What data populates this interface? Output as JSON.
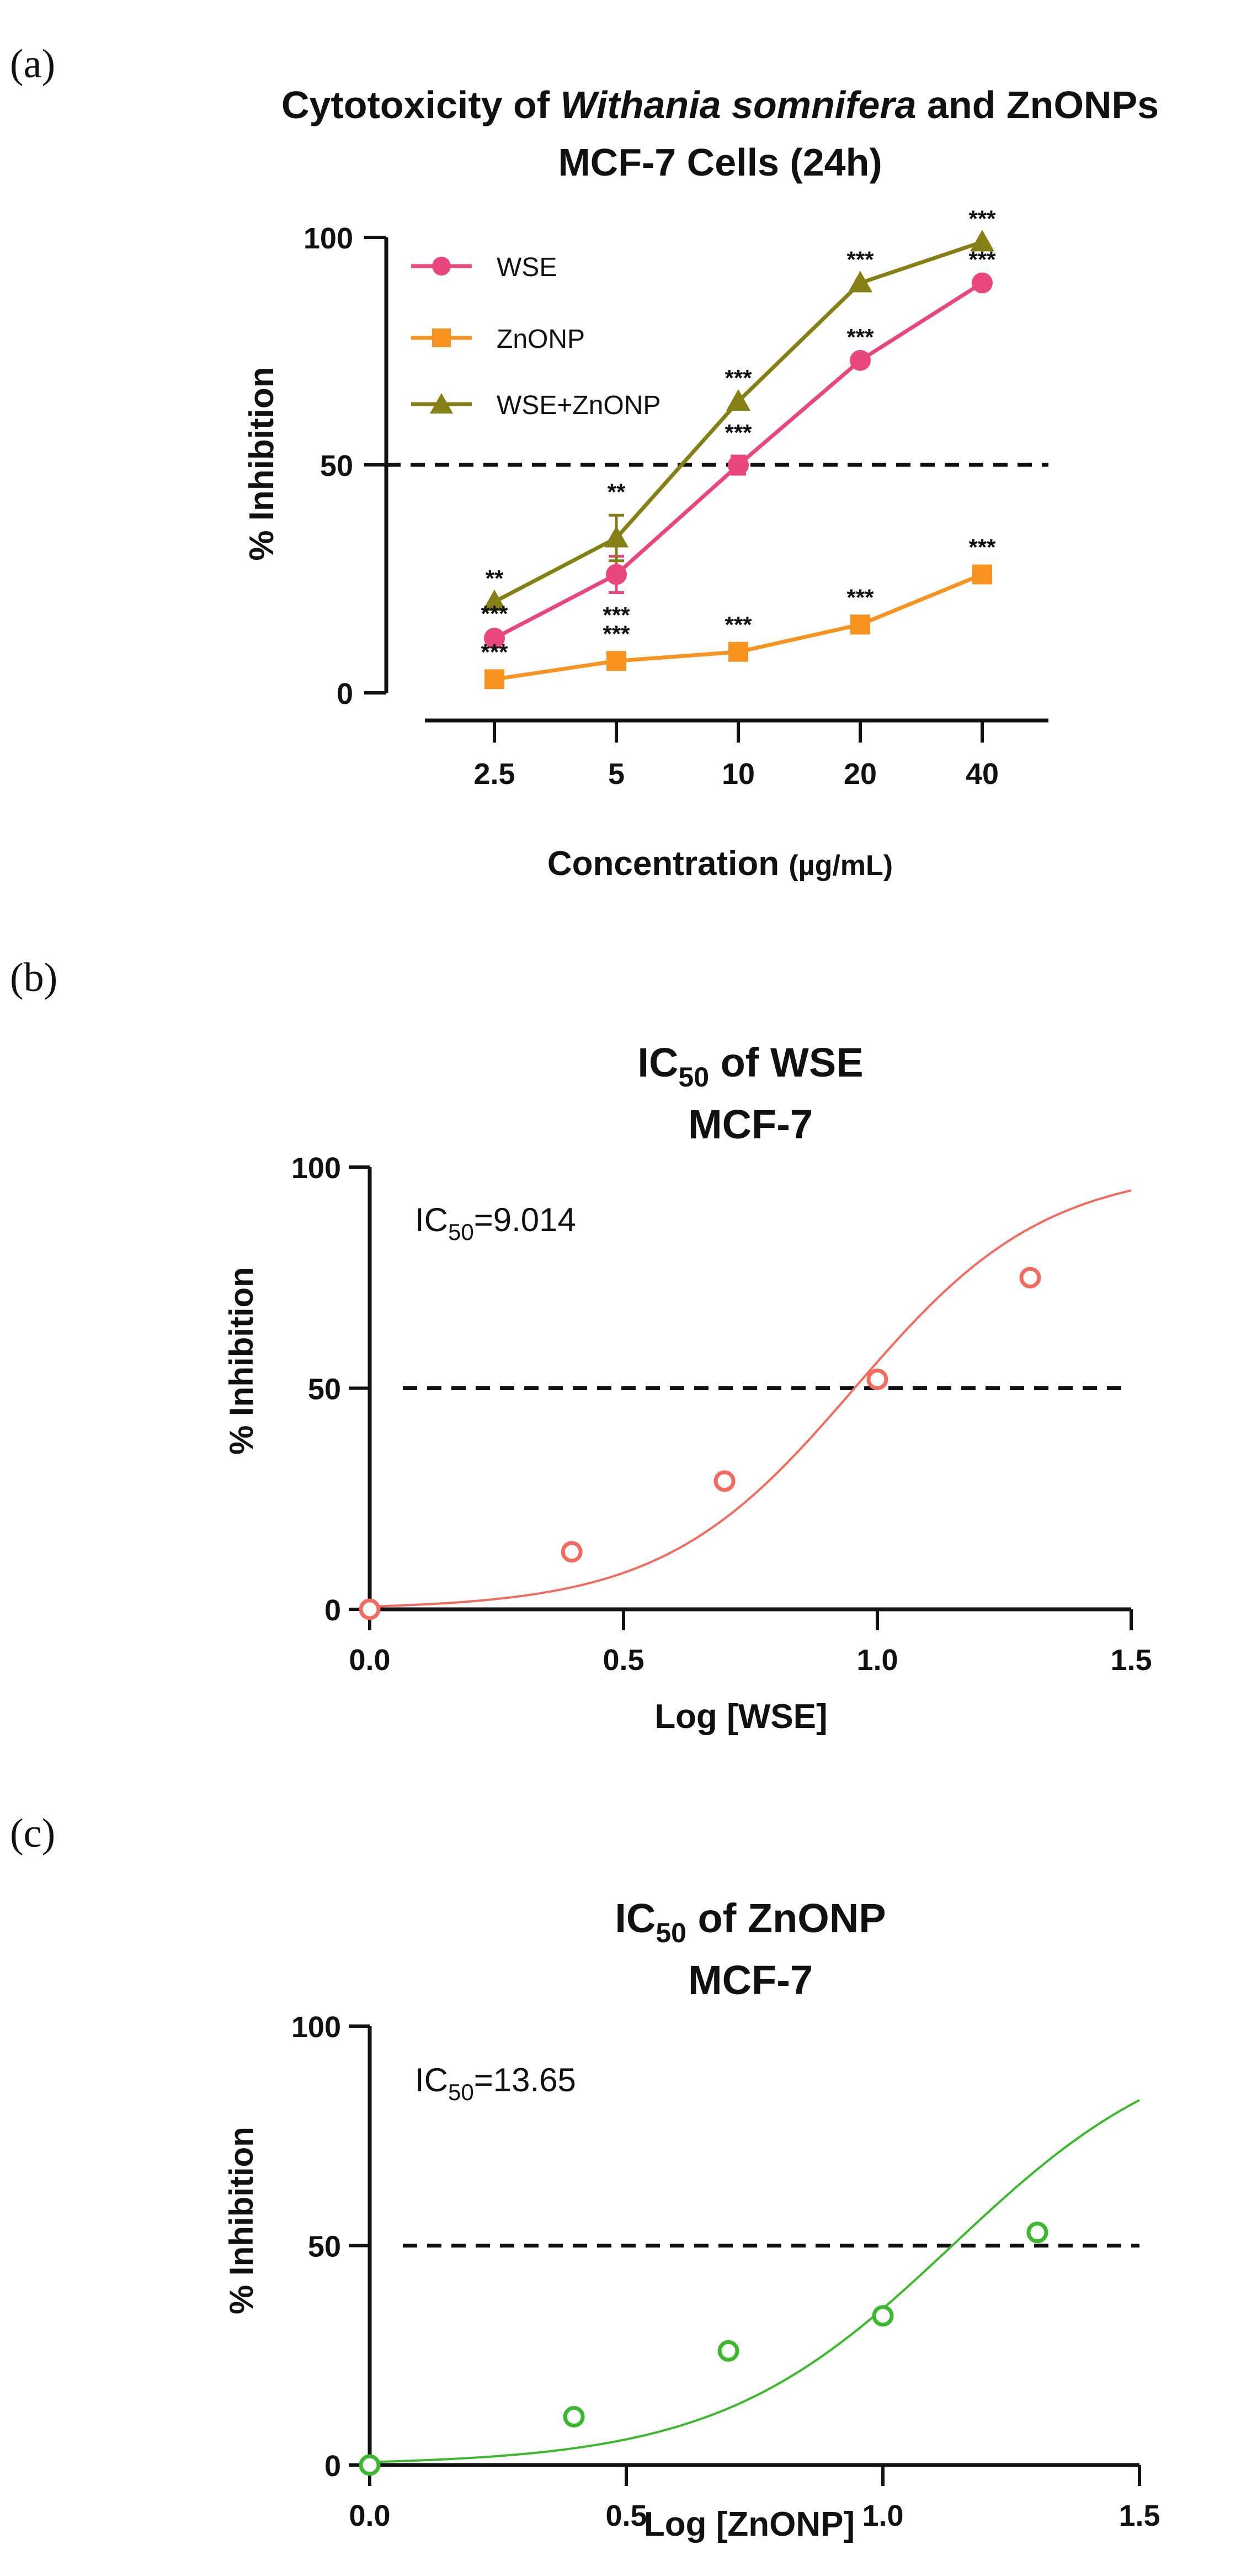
{
  "panels": {
    "a": "(a)",
    "b": "(b)",
    "c": "(c)"
  },
  "chart_data": [
    {
      "type": "line",
      "title_parts": [
        "Cytotoxicity of ",
        "Withania somnifera",
        " and ZnONPs"
      ],
      "subtitle": "MCF-7 Cells (24h)",
      "xlabel_main": "Concentration ",
      "xlabel_unit": "(µg/mL)",
      "ylabel": "% Inhibition",
      "categories": [
        "2.5",
        "5",
        "10",
        "20",
        "40"
      ],
      "yticks": [
        "0",
        "50",
        "100"
      ],
      "ylim": [
        0,
        100
      ],
      "reference_line": 50,
      "legend_position": "top-left",
      "series": [
        {
          "name": "WSE",
          "color": "#e9467e",
          "marker": "circle",
          "values": [
            12,
            26,
            50,
            73,
            90
          ],
          "errors": [
            0,
            4,
            2,
            0,
            0
          ],
          "significance": [
            "***",
            "***",
            "***",
            "***",
            "***"
          ]
        },
        {
          "name": "ZnONP",
          "color": "#f7931e",
          "marker": "square",
          "values": [
            3,
            7,
            9,
            15,
            26
          ],
          "errors": [
            0,
            0,
            0,
            0,
            0
          ],
          "significance": [
            "***",
            "***",
            "***",
            "***",
            "***"
          ]
        },
        {
          "name": "WSE+ZnONP",
          "color": "#858015",
          "marker": "triangle",
          "values": [
            20,
            34,
            64,
            90,
            99
          ],
          "errors": [
            0,
            5,
            0,
            0,
            0
          ],
          "significance": [
            "**",
            "**",
            "***",
            "***",
            "***"
          ]
        }
      ]
    },
    {
      "type": "scatter",
      "title_main": "IC",
      "title_sub": "50",
      "title_rest": " of WSE",
      "subtitle": "MCF-7",
      "xlabel": "Log [WSE]",
      "ylabel": "% Inhibition",
      "xticks": [
        "0.0",
        "0.5",
        "1.0",
        "1.5"
      ],
      "yticks": [
        "0",
        "50",
        "100"
      ],
      "xlim": [
        0,
        1.5
      ],
      "ylim": [
        0,
        100
      ],
      "reference_line": 50,
      "annotation_main": "IC",
      "annotation_sub": "50",
      "annotation_rest": "=9.014",
      "color": "#f26b5e",
      "points": {
        "x": [
          0.0,
          0.398,
          0.699,
          1.0,
          1.301
        ],
        "y": [
          0,
          13,
          29,
          52,
          75
        ]
      },
      "curve": {
        "ic50": 9.014,
        "hill": 2.3,
        "min": 0,
        "max": 100
      }
    },
    {
      "type": "scatter",
      "title_main": "IC",
      "title_sub": "50",
      "title_rest": " of ZnONP",
      "subtitle": "MCF-7",
      "xlabel": "Log [ZnONP]",
      "ylabel": "% Inhibition",
      "xticks": [
        "0.0",
        "0.5",
        "1.0",
        "1.5"
      ],
      "yticks": [
        "0",
        "50",
        "100"
      ],
      "xlim": [
        0,
        1.5
      ],
      "ylim": [
        0,
        100
      ],
      "reference_line": 50,
      "annotation_main": "IC",
      "annotation_sub": "50",
      "annotation_rest": "=13.65",
      "color": "#3cb82e",
      "points": {
        "x": [
          0.0,
          0.398,
          0.699,
          1.0,
          1.301
        ],
        "y": [
          0,
          11,
          26,
          34,
          53
        ]
      },
      "curve": {
        "ic50": 13.65,
        "hill": 1.9,
        "min": 0,
        "max": 100
      }
    }
  ]
}
